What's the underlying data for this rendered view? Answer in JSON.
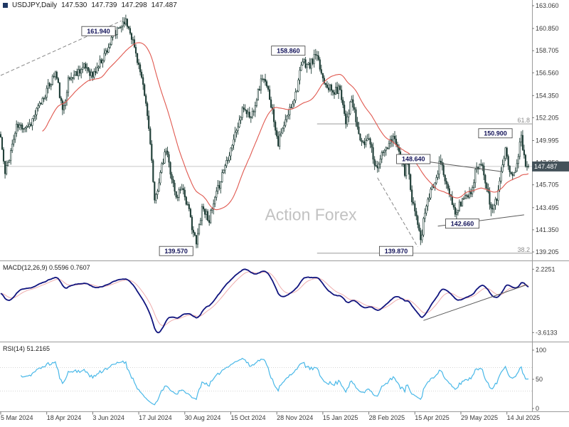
{
  "header": {
    "symbol_period": "USDJPY,Daily",
    "open": "147.530",
    "high": "147.739",
    "low": "147.298",
    "close": "147.487"
  },
  "watermark": "Action Forex",
  "colors": {
    "background": "#ffffff",
    "candle": "#1e3d36",
    "ma": "#e0584f",
    "macd_main": "#10147e",
    "macd_signal": "#efaeae",
    "rsi": "#49b8e8",
    "axis_text": "#3a3a3a",
    "divider": "#9b9b9b",
    "watermark": "#c2c2c2",
    "callout_border": "#3a3a3a",
    "callout_text": "#14145a",
    "price_box_bg": "#44525a",
    "price_box_text": "#ffffff",
    "trendline": "#5a5a5a",
    "fib": "#8c8c8c",
    "current_line": "#b5b5b5",
    "rsi_level": "#c9c9c9"
  },
  "chart_data": {
    "type": "candlestick",
    "symbol": "USDJPY",
    "timeframe": "Daily",
    "num_candles": 368,
    "seed": 11,
    "noise": 0.85,
    "y_axis": {
      "labels": [
        "163.060",
        "160.850",
        "158.705",
        "156.560",
        "154.350",
        "152.205",
        "149.995",
        "147.850",
        "145.705",
        "143.495",
        "141.350",
        "139.205"
      ],
      "top_price": 163.61,
      "bottom_price": 138.38
    },
    "x_axis": {
      "dates": [
        {
          "label": "5 Mar 2024",
          "day": 0
        },
        {
          "label": "18 Apr 2024",
          "day": 32
        },
        {
          "label": "3 Jun 2024",
          "day": 64
        },
        {
          "label": "17 Jul 2024",
          "day": 96
        },
        {
          "label": "30 Aug 2024",
          "day": 128
        },
        {
          "label": "15 Oct 2024",
          "day": 160
        },
        {
          "label": "28 Nov 2024",
          "day": 192
        },
        {
          "label": "15 Jan 2025",
          "day": 224
        },
        {
          "label": "28 Feb 2025",
          "day": 256
        },
        {
          "label": "15 Apr 2025",
          "day": 288
        },
        {
          "label": "29 May 2025",
          "day": 320
        },
        {
          "label": "14 Jul 2025",
          "day": 352
        }
      ]
    },
    "series_waypoints": [
      [
        0,
        150.3
      ],
      [
        3,
        146.7
      ],
      [
        11,
        151.3
      ],
      [
        20,
        151.5
      ],
      [
        26,
        153.1
      ],
      [
        38,
        156.6
      ],
      [
        40,
        155.3
      ],
      [
        43,
        152.7
      ],
      [
        47,
        155.8
      ],
      [
        55,
        156.9
      ],
      [
        60,
        157.1
      ],
      [
        64,
        156.2
      ],
      [
        70,
        157.8
      ],
      [
        76,
        159.4
      ],
      [
        82,
        160.8
      ],
      [
        86,
        161.7
      ],
      [
        90,
        160.7
      ],
      [
        96,
        157.3
      ],
      [
        101,
        153.5
      ],
      [
        104,
        150.0
      ],
      [
        107,
        143.8
      ],
      [
        110,
        146.2
      ],
      [
        115,
        149.1
      ],
      [
        122,
        144.4
      ],
      [
        126,
        145.7
      ],
      [
        131,
        143.0
      ],
      [
        136,
        139.9
      ],
      [
        140,
        143.6
      ],
      [
        145,
        142.4
      ],
      [
        148,
        143.7
      ],
      [
        154,
        146.8
      ],
      [
        160,
        149.3
      ],
      [
        169,
        153.2
      ],
      [
        174,
        152.2
      ],
      [
        182,
        156.2
      ],
      [
        187,
        154.3
      ],
      [
        193,
        149.8
      ],
      [
        200,
        152.6
      ],
      [
        205,
        154.6
      ],
      [
        210,
        157.6
      ],
      [
        215,
        157.2
      ],
      [
        219,
        158.3
      ],
      [
        224,
        156.1
      ],
      [
        231,
        154.6
      ],
      [
        236,
        155.1
      ],
      [
        240,
        151.9
      ],
      [
        244,
        153.9
      ],
      [
        249,
        150.6
      ],
      [
        252,
        149.5
      ],
      [
        256,
        150.5
      ],
      [
        261,
        147.3
      ],
      [
        265,
        148.6
      ],
      [
        270,
        149.5
      ],
      [
        274,
        150.5
      ],
      [
        278,
        148.2
      ],
      [
        281,
        146.9
      ],
      [
        283,
        147.9
      ],
      [
        286,
        143.8
      ],
      [
        289,
        142.9
      ],
      [
        292,
        140.2
      ],
      [
        295,
        143.3
      ],
      [
        300,
        145.3
      ],
      [
        306,
        148.1
      ],
      [
        310,
        145.6
      ],
      [
        316,
        142.8
      ],
      [
        321,
        144.3
      ],
      [
        327,
        145.0
      ],
      [
        331,
        147.5
      ],
      [
        335,
        147.8
      ],
      [
        341,
        143.1
      ],
      [
        345,
        144.6
      ],
      [
        351,
        148.9
      ],
      [
        354,
        147.3
      ],
      [
        357,
        146.6
      ],
      [
        362,
        150.3
      ],
      [
        365,
        147.9
      ],
      [
        367,
        147.5
      ]
    ],
    "last_candle": {
      "open": 147.53,
      "high": 147.739,
      "low": 147.298,
      "close": 147.487
    },
    "forced_extremes": [
      {
        "day": 86,
        "type": "high",
        "value": 161.94
      },
      {
        "day": 136,
        "type": "low",
        "value": 139.57
      },
      {
        "day": 219,
        "type": "high",
        "value": 158.86
      },
      {
        "day": 292,
        "type": "low",
        "value": 139.87
      },
      {
        "day": 306,
        "type": "high",
        "value": 148.64
      },
      {
        "day": 341,
        "type": "low",
        "value": 142.66
      },
      {
        "day": 362,
        "type": "high",
        "value": 150.9
      }
    ],
    "moving_average": {
      "period": 30
    },
    "current_price": "147.487",
    "annotations": [
      {
        "label": "161.940",
        "day": 68,
        "price": 160.6
      },
      {
        "label": "158.860",
        "day": 200,
        "price": 158.7
      },
      {
        "label": "150.900",
        "day": 344,
        "price": 150.7
      },
      {
        "label": "148.640",
        "day": 287,
        "price": 148.2
      },
      {
        "label": "142.660",
        "day": 321,
        "price": 141.95
      },
      {
        "label": "139.570",
        "day": 122,
        "price": 139.3
      },
      {
        "label": "139.870",
        "day": 275,
        "price": 139.3
      }
    ],
    "fib_levels": [
      {
        "label": "61.8",
        "price": 151.61,
        "from_day": 220
      },
      {
        "label": "38.2",
        "price": 139.08,
        "from_day": 220
      }
    ],
    "trendlines": [
      {
        "x1_day": 0,
        "y1_price": 156.3,
        "x2_day": 84,
        "y2_price": 161.6,
        "dashed": true
      },
      {
        "x1_day": 262,
        "y1_price": 146.4,
        "x2_day": 290,
        "y2_price": 139.7,
        "dashed": true
      },
      {
        "x1_day": 278,
        "y1_price": 148.3,
        "x2_day": 348,
        "y2_price": 147.0,
        "dashed": false
      },
      {
        "x1_day": 304,
        "y1_price": 141.7,
        "x2_day": 364,
        "y2_price": 142.8,
        "dashed": false
      }
    ],
    "macd": {
      "label": "MACD(12,26,9) 0.5596 0.7607",
      "fast": 12,
      "slow": 26,
      "signal": 9,
      "value": "0.5596",
      "signal_value": "0.7607",
      "axis_max": "2.2251",
      "axis_min": "-3.6133",
      "v_top": 2.9,
      "v_bot": -4.45,
      "trendline": {
        "x1_day": 294,
        "v1": -2.5,
        "x2_day": 366,
        "v2": 0.8
      }
    },
    "rsi": {
      "label": "RSI(14) 51.2165",
      "period": 14,
      "value": "51.2165",
      "axis_labels": [
        "100",
        "50",
        "0"
      ],
      "levels": [
        70,
        30
      ]
    }
  }
}
